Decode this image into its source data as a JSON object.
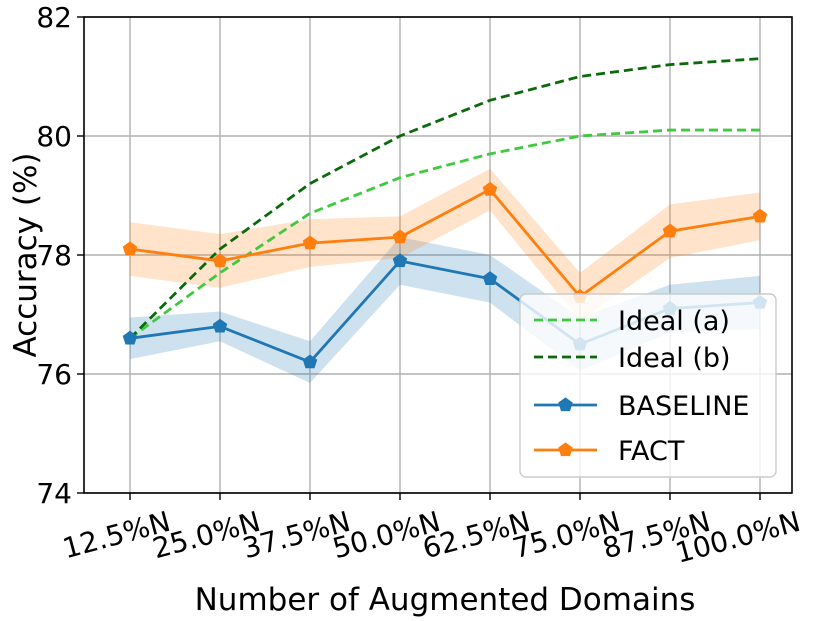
{
  "chart_data": {
    "type": "line",
    "title": "",
    "xlabel": "Number of Augmented Domains",
    "ylabel": "Accuracy (%)",
    "categories": [
      "12.5%N",
      "25.0%N",
      "37.5%N",
      "50.0%N",
      "62.5%N",
      "75.0%N",
      "87.5%N",
      "100.0%N"
    ],
    "ylim": [
      74,
      82
    ],
    "yticks": [
      "74",
      "76",
      "78",
      "80",
      "82"
    ],
    "grid": true,
    "legend_position": "bottom-right",
    "series": [
      {
        "name": "Ideal (a)",
        "style": "dashed",
        "color": "#3fc93f",
        "values": [
          76.6,
          77.7,
          78.7,
          79.3,
          79.7,
          80.0,
          80.1,
          80.1
        ]
      },
      {
        "name": "Ideal (b)",
        "style": "dashed",
        "color": "#0a6a0a",
        "values": [
          76.6,
          78.1,
          79.2,
          80.0,
          80.6,
          81.0,
          81.2,
          81.3
        ]
      },
      {
        "name": "BASELINE",
        "style": "solid",
        "marker": "pentagon",
        "color": "#1f77b4",
        "values": [
          76.6,
          76.8,
          76.2,
          77.9,
          77.6,
          76.5,
          77.1,
          77.2
        ],
        "band_low": [
          76.25,
          76.55,
          75.85,
          77.5,
          77.2,
          76.05,
          76.7,
          76.75
        ],
        "band_high": [
          76.95,
          77.05,
          76.55,
          78.3,
          78.0,
          76.95,
          77.5,
          77.65
        ]
      },
      {
        "name": "FACT",
        "style": "solid",
        "marker": "pentagon",
        "color": "#ff7f0e",
        "values": [
          78.1,
          77.9,
          78.2,
          78.3,
          79.1,
          77.3,
          78.4,
          78.65
        ],
        "band_low": [
          77.65,
          77.45,
          77.8,
          77.95,
          78.75,
          76.9,
          77.95,
          78.25
        ],
        "band_high": [
          78.55,
          78.35,
          78.6,
          78.65,
          79.45,
          77.7,
          78.85,
          79.05
        ]
      }
    ]
  }
}
